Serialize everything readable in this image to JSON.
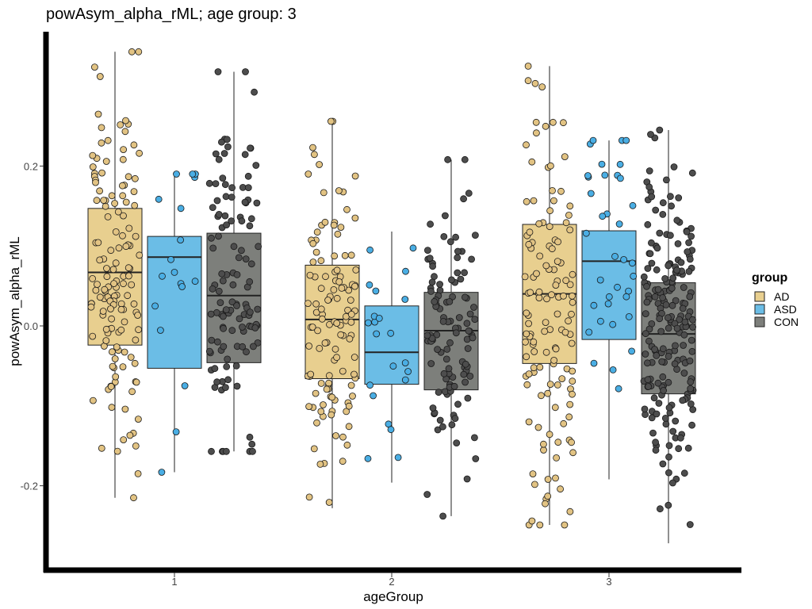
{
  "chart_data": {
    "type": "boxplot",
    "title": "powAsym_alpha_rML; age group: 3",
    "xlabel": "ageGroup",
    "ylabel": "powAsym_alpha_rML",
    "categories": [
      "1",
      "2",
      "3"
    ],
    "ylim": [
      -0.3,
      0.35
    ],
    "yticks": [
      -0.2,
      0.0,
      0.2
    ],
    "ytick_labels": [
      "-0.2",
      "0.0",
      "0.2"
    ],
    "grid": false,
    "legend": {
      "title": "group",
      "position": "right",
      "entries": [
        "AD",
        "ASD",
        "CON"
      ]
    },
    "colors": {
      "AD": "#e8cf8f",
      "ASD": "#6bbde6",
      "CON": "#7d7f7b",
      "AD_point": "#e2c383",
      "ASD_point": "#4aaee4",
      "CON_point": "#4d4d4d"
    },
    "series": [
      {
        "name": "AD",
        "boxes": [
          {
            "category": "1",
            "whisker_low": -0.215,
            "q1": -0.024,
            "median": 0.067,
            "q3": 0.147,
            "whisker_high": 0.343,
            "n": 140
          },
          {
            "category": "2",
            "whisker_low": -0.228,
            "q1": -0.066,
            "median": 0.008,
            "q3": 0.076,
            "whisker_high": 0.256,
            "n": 120
          },
          {
            "category": "3",
            "whisker_low": -0.249,
            "q1": -0.047,
            "median": 0.04,
            "q3": 0.127,
            "whisker_high": 0.325,
            "n": 130
          }
        ]
      },
      {
        "name": "ASD",
        "boxes": [
          {
            "category": "1",
            "whisker_low": -0.183,
            "q1": -0.053,
            "median": 0.086,
            "q3": 0.112,
            "whisker_high": 0.19,
            "n": 18
          },
          {
            "category": "2",
            "whisker_low": -0.196,
            "q1": -0.073,
            "median": -0.033,
            "q3": 0.025,
            "whisker_high": 0.118,
            "n": 22
          },
          {
            "category": "3",
            "whisker_low": -0.192,
            "q1": -0.017,
            "median": 0.081,
            "q3": 0.119,
            "whisker_high": 0.232,
            "n": 36
          }
        ]
      },
      {
        "name": "CON",
        "boxes": [
          {
            "category": "1",
            "whisker_low": -0.157,
            "q1": -0.046,
            "median": 0.038,
            "q3": 0.116,
            "whisker_high": 0.318,
            "n": 120
          },
          {
            "category": "2",
            "whisker_low": -0.238,
            "q1": -0.08,
            "median": -0.006,
            "q3": 0.042,
            "whisker_high": 0.208,
            "n": 110
          },
          {
            "category": "3",
            "whisker_low": -0.272,
            "q1": -0.085,
            "median": -0.01,
            "q3": 0.054,
            "whisker_high": 0.245,
            "n": 200
          }
        ]
      }
    ]
  }
}
